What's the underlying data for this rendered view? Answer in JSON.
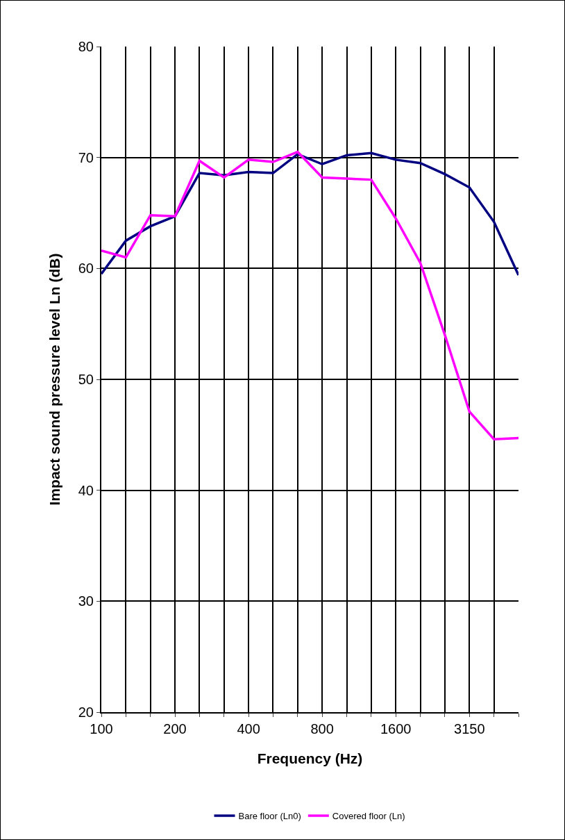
{
  "chart_data": {
    "type": "line",
    "xlabel": "Frequency (Hz)",
    "ylabel": "Impact sound pressure level Ln (dB)",
    "categories": [
      "100",
      null,
      null,
      "200",
      null,
      null,
      "400",
      null,
      null,
      "800",
      null,
      null,
      "1600",
      null,
      null,
      "3150",
      null,
      null
    ],
    "series": [
      {
        "name": "Bare floor (Ln0)",
        "color": "#000080",
        "values": [
          59.5,
          62.5,
          63.8,
          64.7,
          68.6,
          68.4,
          68.7,
          68.6,
          70.3,
          69.4,
          70.2,
          70.4,
          69.8,
          69.5,
          68.5,
          67.3,
          64.2,
          59.4
        ]
      },
      {
        "name": "Covered floor (Ln)",
        "color": "#ff00ff",
        "values": [
          61.6,
          61.0,
          64.8,
          64.7,
          69.7,
          68.2,
          69.8,
          69.6,
          70.5,
          68.2,
          68.1,
          68.0,
          64.5,
          60.5,
          54.0,
          47.1,
          44.6,
          44.7
        ]
      }
    ],
    "ylim": [
      20,
      80
    ],
    "yticks": [
      20,
      30,
      40,
      50,
      60,
      70,
      80
    ],
    "grid": true,
    "legend": "bottom",
    "marker": "none",
    "line_style": "solid"
  }
}
